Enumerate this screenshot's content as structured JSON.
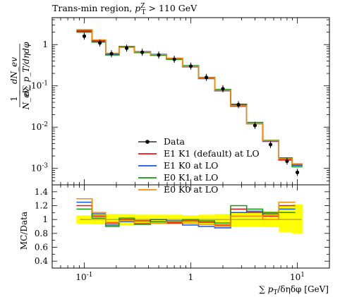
{
  "title": "Trans-min region, p_T^Z > 110 GeV",
  "title_parts": {
    "main": "Trans-min region, ",
    "var": "p",
    "sub": "T",
    "sup": "Z",
    "cut": " > 110 GeV"
  },
  "chart_data": [
    {
      "type": "line",
      "panel": "main",
      "ylabel": "1/N_ev dN_ev / d∑p_T/dηdφ",
      "ylabel_parts": {
        "frac_num": "1",
        "frac_den": "N_ev",
        "num": "dN_ev",
        "den": "d∑ p_T/dηdφ"
      },
      "xscale": "log",
      "yscale": "log",
      "xlim": [
        0.05,
        20
      ],
      "ylim": [
        0.0004,
        4.5
      ],
      "y_tick_labels": [
        "10^-3",
        "10^-2",
        "10^-1",
        "1"
      ],
      "legend_placement": "lower-center",
      "series": [
        {
          "name": "Data",
          "color": "#000000",
          "style": "points",
          "x": [
            0.1,
            0.14,
            0.18,
            0.25,
            0.35,
            0.5,
            0.7,
            1.0,
            1.4,
            2.0,
            2.8,
            4.0,
            5.6,
            8.0,
            10.0
          ],
          "y": [
            1.6,
            1.1,
            0.6,
            0.82,
            0.65,
            0.56,
            0.44,
            0.3,
            0.16,
            0.085,
            0.035,
            0.011,
            0.0038,
            0.0015,
            0.0008
          ]
        },
        {
          "name": "E1 K1 (default) at LO",
          "color": "#ee1111",
          "style": "histogram",
          "x": [
            0.1,
            0.14,
            0.18,
            0.25,
            0.35,
            0.5,
            0.7,
            1.0,
            1.4,
            2.0,
            2.8,
            4.0,
            5.6,
            8.0,
            10.0
          ],
          "y": [
            2.1,
            1.2,
            0.58,
            0.86,
            0.66,
            0.57,
            0.45,
            0.3,
            0.158,
            0.08,
            0.034,
            0.012,
            0.0045,
            0.0016,
            0.0012
          ]
        },
        {
          "name": "E1 K0 at LO",
          "color": "#1155ee",
          "style": "histogram",
          "x": [
            0.1,
            0.14,
            0.18,
            0.25,
            0.35,
            0.5,
            0.7,
            1.0,
            1.4,
            2.0,
            2.8,
            4.0,
            5.6,
            8.0,
            10.0
          ],
          "y": [
            2.2,
            1.25,
            0.6,
            0.88,
            0.68,
            0.58,
            0.46,
            0.29,
            0.15,
            0.076,
            0.032,
            0.012,
            0.0046,
            0.0017,
            0.0012
          ]
        },
        {
          "name": "E0 K1 at LO",
          "color": "#119911",
          "style": "histogram",
          "x": [
            0.1,
            0.14,
            0.18,
            0.25,
            0.35,
            0.5,
            0.7,
            1.0,
            1.4,
            2.0,
            2.8,
            4.0,
            5.6,
            8.0,
            10.0
          ],
          "y": [
            2.0,
            1.15,
            0.56,
            0.9,
            0.64,
            0.55,
            0.44,
            0.31,
            0.16,
            0.082,
            0.036,
            0.013,
            0.0048,
            0.0018,
            0.0011
          ]
        },
        {
          "name": "E0 K0 at LO",
          "color": "#ff8800",
          "style": "histogram",
          "x": [
            0.1,
            0.14,
            0.18,
            0.25,
            0.35,
            0.5,
            0.7,
            1.0,
            1.4,
            2.0,
            2.8,
            4.0,
            5.6,
            8.0,
            10.0
          ],
          "y": [
            2.3,
            1.3,
            0.62,
            0.85,
            0.67,
            0.57,
            0.47,
            0.3,
            0.155,
            0.079,
            0.033,
            0.012,
            0.0047,
            0.0017,
            0.0013
          ]
        }
      ]
    },
    {
      "type": "line",
      "panel": "ratio",
      "ylabel": "MC/Data",
      "xlabel": "∑ p_T/δηδφ [GeV]",
      "xlabel_parts": {
        "sum": "∑ ",
        "var": "p",
        "sub": "T",
        "rest": "/δηδφ [GeV]"
      },
      "xscale": "log",
      "xlim": [
        0.05,
        20
      ],
      "ylim": [
        0.3,
        1.5
      ],
      "x_tick_labels": [
        "10^-1",
        "1",
        "10^1"
      ],
      "y_ticks": [
        0.4,
        0.6,
        0.8,
        1,
        1.2,
        1.4
      ],
      "y_tick_labels": [
        "0.4",
        "0.6",
        "0.8",
        "1",
        "1.2",
        "1.4"
      ],
      "band": {
        "color": "#ffff00",
        "x": [
          0.1,
          0.14,
          0.18,
          0.25,
          0.35,
          0.5,
          0.7,
          1.0,
          1.4,
          2.0,
          2.8,
          4.0,
          5.6,
          8.0,
          10.0
        ],
        "lo": [
          0.94,
          0.93,
          0.92,
          0.92,
          0.93,
          0.93,
          0.93,
          0.94,
          0.93,
          0.92,
          0.9,
          0.9,
          0.89,
          0.82,
          0.8
        ],
        "hi": [
          1.06,
          1.07,
          1.08,
          1.08,
          1.07,
          1.07,
          1.07,
          1.06,
          1.07,
          1.08,
          1.1,
          1.1,
          1.12,
          1.2,
          1.22
        ]
      },
      "series": [
        {
          "name": "E1 K1 (default) at LO",
          "color": "#ee1111",
          "x": [
            0.1,
            0.14,
            0.18,
            0.25,
            0.35,
            0.5,
            0.7,
            1.0,
            1.4,
            2.0,
            2.8,
            4.0,
            5.6,
            8.0
          ],
          "y": [
            1.2,
            1.05,
            0.95,
            1.0,
            0.98,
            1.0,
            0.95,
            0.98,
            0.96,
            0.92,
            1.15,
            1.1,
            1.05,
            1.2
          ]
        },
        {
          "name": "E1 K0 at LO",
          "color": "#1155ee",
          "x": [
            0.1,
            0.14,
            0.18,
            0.25,
            0.35,
            0.5,
            0.7,
            1.0,
            1.4,
            2.0,
            2.8,
            4.0,
            5.6,
            8.0
          ],
          "y": [
            1.25,
            1.08,
            0.92,
            0.97,
            0.94,
            1.0,
            0.98,
            0.92,
            0.9,
            0.88,
            1.1,
            1.12,
            1.08,
            1.15
          ]
        },
        {
          "name": "E0 K1 at LO",
          "color": "#119911",
          "x": [
            0.1,
            0.14,
            0.18,
            0.25,
            0.35,
            0.5,
            0.7,
            1.0,
            1.4,
            2.0,
            2.8,
            4.0,
            5.6,
            8.0
          ],
          "y": [
            1.15,
            1.02,
            0.9,
            1.02,
            0.93,
            0.97,
            0.96,
            1.0,
            0.98,
            0.95,
            1.2,
            1.15,
            1.1,
            1.1
          ]
        },
        {
          "name": "E0 K0 at LO",
          "color": "#ff8800",
          "x": [
            0.1,
            0.14,
            0.18,
            0.25,
            0.35,
            0.5,
            0.7,
            1.0,
            1.4,
            2.0,
            2.8,
            4.0,
            5.6,
            8.0
          ],
          "y": [
            1.3,
            1.1,
            0.96,
            0.98,
            0.95,
            0.95,
            0.97,
            0.95,
            0.93,
            0.9,
            1.05,
            1.05,
            1.0,
            1.25
          ]
        }
      ]
    }
  ]
}
